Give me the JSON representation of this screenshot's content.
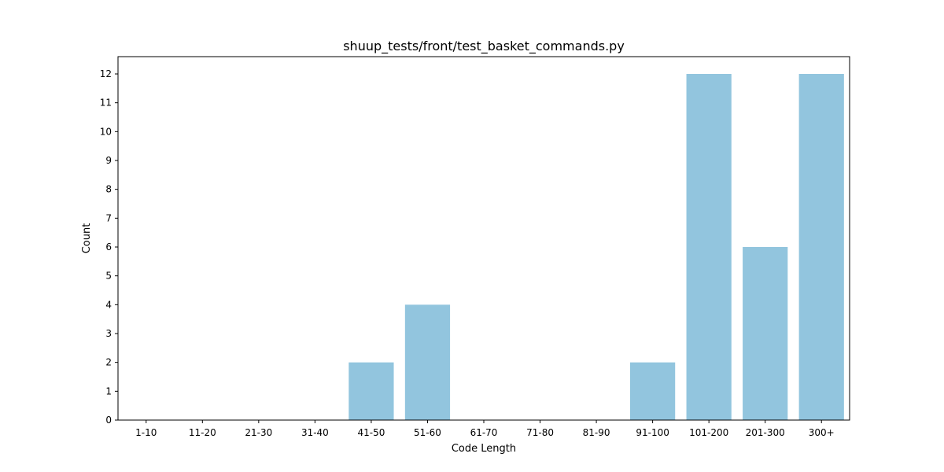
{
  "chart_data": {
    "type": "bar",
    "title": "shuup_tests/front/test_basket_commands.py",
    "xlabel": "Code Length",
    "ylabel": "Count",
    "categories": [
      "1-10",
      "11-20",
      "21-30",
      "31-40",
      "41-50",
      "51-60",
      "61-70",
      "71-80",
      "81-90",
      "91-100",
      "101-200",
      "201-300",
      "300+"
    ],
    "values": [
      0,
      0,
      0,
      0,
      2,
      4,
      0,
      0,
      0,
      2,
      12,
      6,
      12
    ],
    "ylim": [
      0,
      12.6
    ],
    "yticks": [
      0,
      1,
      2,
      3,
      4,
      5,
      6,
      7,
      8,
      9,
      10,
      11,
      12
    ],
    "bar_color": "#92c5de",
    "grid": false,
    "legend": false
  }
}
